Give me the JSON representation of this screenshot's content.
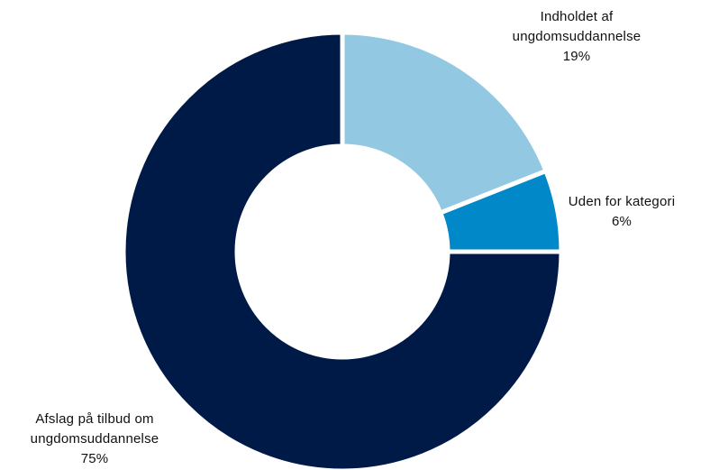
{
  "chart_data": {
    "type": "pie",
    "donut": true,
    "title": "",
    "slices": [
      {
        "label_lines": [
          "Indholdet af",
          "ungdomsuddannelse"
        ],
        "value_label": "19%",
        "value": 19,
        "color": "#93c8e3"
      },
      {
        "label_lines": [
          "Uden for kategori"
        ],
        "value_label": "6%",
        "value": 6,
        "color": "#0088c9"
      },
      {
        "label_lines": [
          "Afslag på tilbud om",
          "ungdomsuddannelse"
        ],
        "value_label": "75%",
        "value": 75,
        "color": "#001a48"
      }
    ],
    "start": "12 o'clock",
    "direction": "clockwise",
    "legend": "none",
    "labels": "outside"
  }
}
